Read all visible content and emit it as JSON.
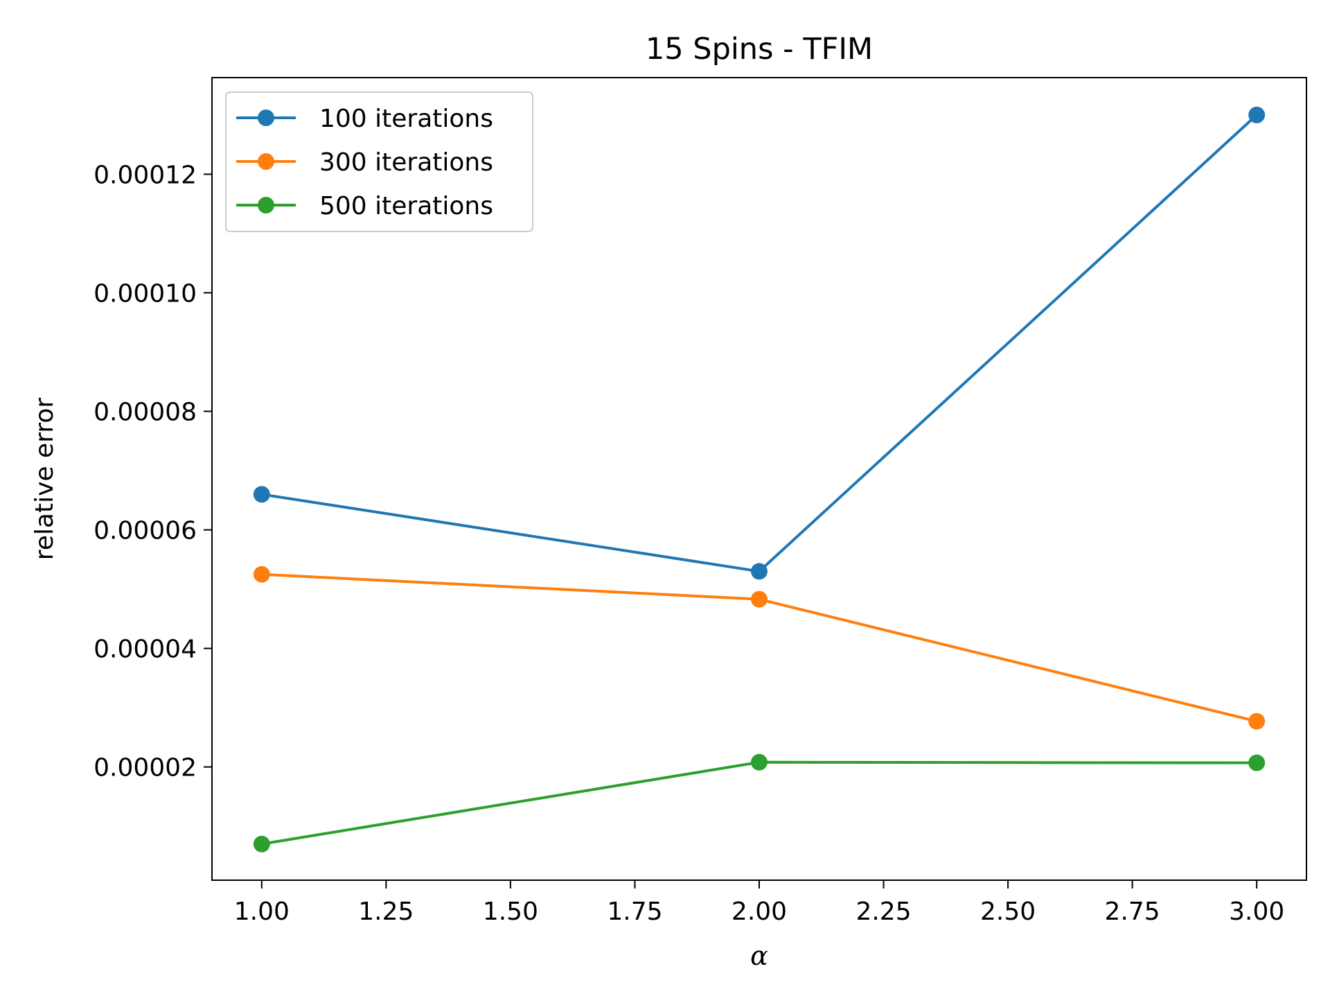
{
  "chart_data": {
    "type": "line",
    "title": "15 Spins - TFIM",
    "xlabel": "α",
    "ylabel": "relative error",
    "x": [
      1.0,
      2.0,
      3.0
    ],
    "xlim": [
      0.9,
      3.1
    ],
    "ylim": [
      9e-07,
      0.0001363
    ],
    "xticks": [
      1.0,
      1.25,
      1.5,
      1.75,
      2.0,
      2.25,
      2.5,
      2.75,
      3.0
    ],
    "xtick_labels": [
      "1.00",
      "1.25",
      "1.50",
      "1.75",
      "2.00",
      "2.25",
      "2.50",
      "2.75",
      "3.00"
    ],
    "yticks": [
      2e-05,
      4e-05,
      6e-05,
      8e-05,
      0.0001,
      0.00012
    ],
    "ytick_labels": [
      "0.00002",
      "0.00004",
      "0.00006",
      "0.00008",
      "0.00010",
      "0.00012"
    ],
    "grid": false,
    "legend_position": "upper-left",
    "series": [
      {
        "name": "100 iterations",
        "color": "#1f77b4",
        "values": [
          6.6e-05,
          5.3e-05,
          0.00013
        ]
      },
      {
        "name": "300 iterations",
        "color": "#ff7f0e",
        "values": [
          5.25e-05,
          4.83e-05,
          2.77e-05
        ]
      },
      {
        "name": "500 iterations",
        "color": "#2ca02c",
        "values": [
          7e-06,
          2.08e-05,
          2.07e-05
        ]
      }
    ]
  }
}
